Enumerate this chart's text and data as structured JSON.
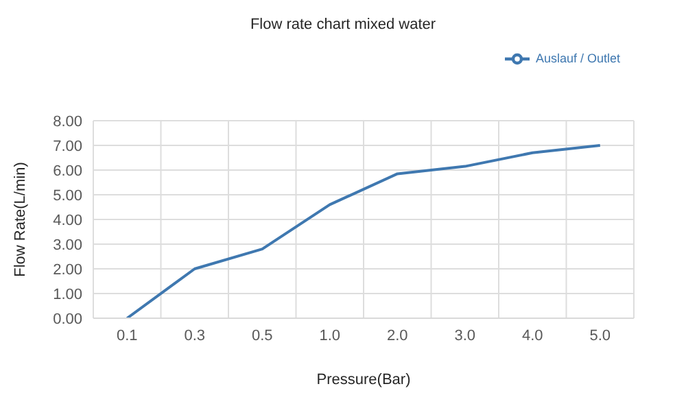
{
  "chart_data": {
    "type": "line",
    "title": "Flow rate chart mixed water",
    "xlabel": "Pressure(Bar)",
    "ylabel": "Flow Rate(L/min)",
    "categories": [
      "0.1",
      "0.3",
      "0.5",
      "1.0",
      "2.0",
      "3.0",
      "4.0",
      "5.0"
    ],
    "series": [
      {
        "name": "Auslauf / Outlet",
        "color": "#3f78b0",
        "values": [
          0,
          2.0,
          2.8,
          4.6,
          5.85,
          6.15,
          6.7,
          7.0
        ]
      }
    ],
    "ylim": [
      0,
      8
    ],
    "yticks": [
      {
        "value": 0,
        "label": "0.00"
      },
      {
        "value": 1,
        "label": "1.00"
      },
      {
        "value": 2,
        "label": "2.00"
      },
      {
        "value": 3,
        "label": "3.00"
      },
      {
        "value": 4,
        "label": "4.00"
      },
      {
        "value": 5,
        "label": "5.00"
      },
      {
        "value": 6,
        "label": "6.00"
      },
      {
        "value": 7,
        "label": "7.00"
      },
      {
        "value": 8,
        "label": "8.00"
      }
    ],
    "grid": true,
    "legend": "top right",
    "marker": "none",
    "line_style": "solid"
  }
}
